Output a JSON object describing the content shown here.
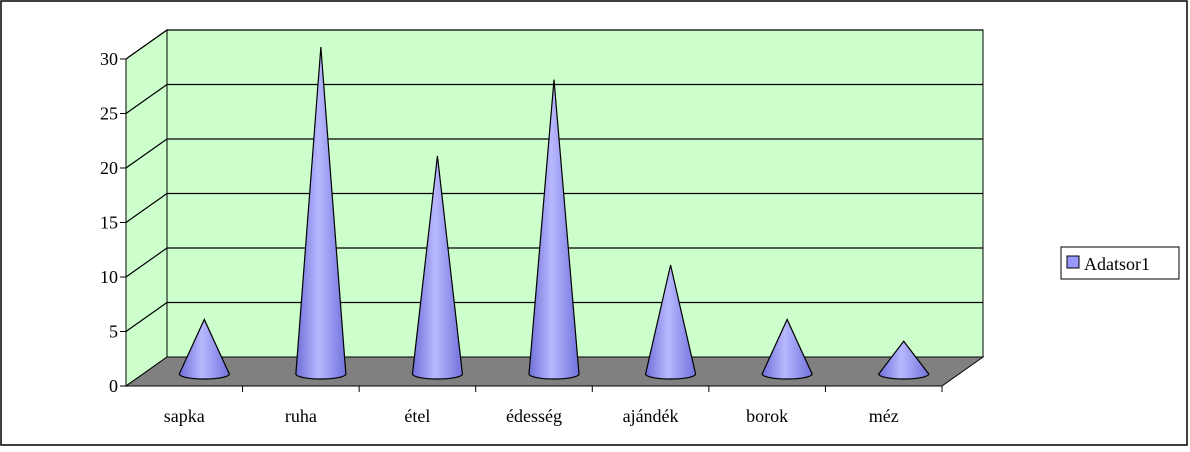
{
  "chart_data": {
    "type": "bar",
    "style": "3d-cone",
    "title": "",
    "xlabel": "",
    "ylabel": "",
    "categories": [
      "sapka",
      "ruha",
      "étel",
      "édesség",
      "ajándék",
      "borok",
      "méz"
    ],
    "series": [
      {
        "name": "Adatsor1",
        "values": [
          5,
          30,
          20,
          27,
          10,
          5,
          3
        ]
      }
    ],
    "ylim": [
      0,
      30
    ],
    "yticks": [
      "0",
      "5",
      "10",
      "15",
      "20",
      "25",
      "30"
    ],
    "grid": true,
    "legend": "right",
    "colors": {
      "wall": "#ccffcc",
      "floor": "#808080",
      "cone": "#9999ff",
      "cone_dark": "#6666cc",
      "grid": "#000000"
    }
  }
}
